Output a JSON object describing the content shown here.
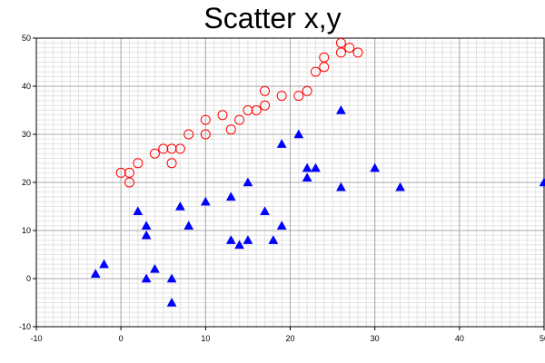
{
  "chart_data": {
    "type": "scatter",
    "title": "Scatter x,y",
    "xlabel": "",
    "ylabel": "",
    "xlim": [
      -10,
      50
    ],
    "ylim": [
      -10,
      50
    ],
    "x_ticks": [
      -10,
      0,
      10,
      20,
      30,
      40,
      50
    ],
    "y_ticks": [
      -10,
      0,
      10,
      20,
      30,
      40,
      50
    ],
    "grid": true,
    "minor_grid": true,
    "legend": "none",
    "series": [
      {
        "marker": "open-circle",
        "color": "#ff0000",
        "points": [
          [
            0,
            22
          ],
          [
            1,
            22
          ],
          [
            1,
            20
          ],
          [
            2,
            24
          ],
          [
            4,
            26
          ],
          [
            5,
            27
          ],
          [
            6,
            27
          ],
          [
            6,
            24
          ],
          [
            7,
            27
          ],
          [
            8,
            30
          ],
          [
            10,
            30
          ],
          [
            10,
            33
          ],
          [
            12,
            34
          ],
          [
            13,
            31
          ],
          [
            14,
            33
          ],
          [
            15,
            35
          ],
          [
            16,
            35
          ],
          [
            17,
            36
          ],
          [
            17,
            39
          ],
          [
            19,
            38
          ],
          [
            21,
            38
          ],
          [
            22,
            39
          ],
          [
            23,
            43
          ],
          [
            24,
            44
          ],
          [
            24,
            46
          ],
          [
            26,
            47
          ],
          [
            26,
            49
          ],
          [
            27,
            48
          ],
          [
            28,
            47
          ]
        ]
      },
      {
        "marker": "filled-triangle",
        "color": "#0000ff",
        "points": [
          [
            -3,
            1
          ],
          [
            -2,
            3
          ],
          [
            2,
            14
          ],
          [
            3,
            11
          ],
          [
            3,
            9
          ],
          [
            3,
            0
          ],
          [
            4,
            2
          ],
          [
            6,
            0
          ],
          [
            6,
            -5
          ],
          [
            7,
            15
          ],
          [
            8,
            11
          ],
          [
            10,
            16
          ],
          [
            13,
            17
          ],
          [
            13,
            8
          ],
          [
            14,
            7
          ],
          [
            15,
            20
          ],
          [
            15,
            8
          ],
          [
            17,
            14
          ],
          [
            18,
            8
          ],
          [
            19,
            28
          ],
          [
            19,
            11
          ],
          [
            21,
            30
          ],
          [
            22,
            23
          ],
          [
            22,
            21
          ],
          [
            23,
            23
          ],
          [
            26,
            35
          ],
          [
            26,
            19
          ],
          [
            30,
            23
          ],
          [
            33,
            19
          ],
          [
            50,
            20
          ]
        ]
      }
    ]
  }
}
